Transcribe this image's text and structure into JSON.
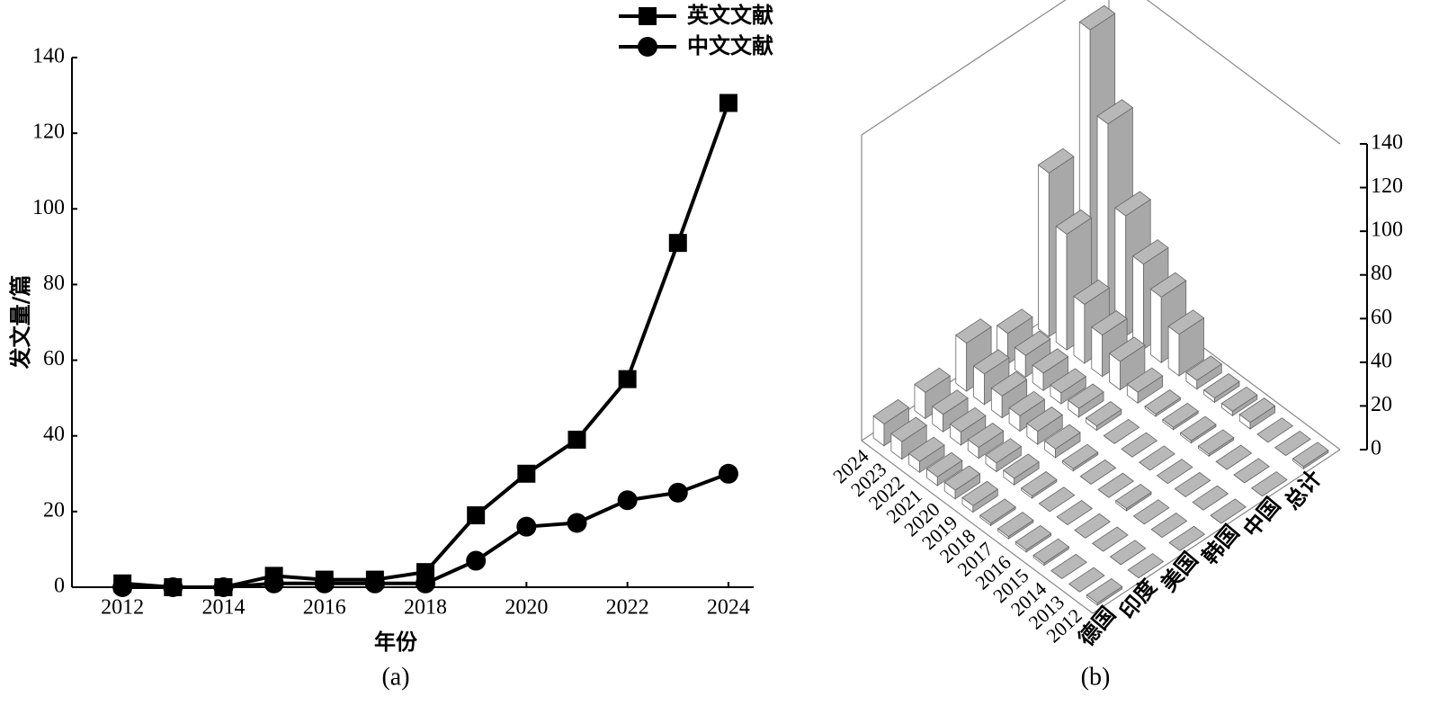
{
  "chart_data": [
    {
      "type": "line",
      "caption": "(a)",
      "xlabel": "年份",
      "ylabel": "发文量/篇",
      "x": [
        2012,
        2013,
        2014,
        2015,
        2016,
        2017,
        2018,
        2019,
        2020,
        2021,
        2022,
        2023,
        2024
      ],
      "series": [
        {
          "name": "英文文献",
          "color": "#000000",
          "marker": "square",
          "values": [
            1,
            0,
            0,
            3,
            2,
            2,
            4,
            19,
            30,
            39,
            55,
            91,
            128
          ]
        },
        {
          "name": "中文文献",
          "color": "#000000",
          "marker": "circle",
          "values": [
            0,
            0,
            0,
            1,
            1,
            1,
            1,
            7,
            16,
            17,
            23,
            25,
            30
          ]
        }
      ],
      "xlim": [
        2011,
        2024.5
      ],
      "xticks": [
        2012,
        2014,
        2016,
        2018,
        2020,
        2022,
        2024
      ],
      "ylim": [
        0,
        140
      ],
      "yticks": [
        0,
        20,
        40,
        60,
        80,
        100,
        120,
        140
      ],
      "legend": "top-right",
      "grid": false
    },
    {
      "type": "bar3d",
      "caption": "(b)",
      "categories": [
        "2012",
        "2013",
        "2014",
        "2015",
        "2016",
        "2017",
        "2018",
        "2019",
        "2020",
        "2021",
        "2022",
        "2023",
        "2024"
      ],
      "series": [
        {
          "name": "德国",
          "color": "#b8b8b8",
          "values": [
            1,
            0,
            0,
            1,
            1,
            1,
            1,
            3,
            4,
            4,
            5,
            8,
            10
          ]
        },
        {
          "name": "印度",
          "color": "#b8b8b8",
          "values": [
            0,
            0,
            0,
            0,
            0,
            0,
            1,
            3,
            4,
            5,
            6,
            8,
            12
          ]
        },
        {
          "name": "美国",
          "color": "#b8b8b8",
          "values": [
            0,
            0,
            0,
            1,
            0,
            0,
            1,
            4,
            6,
            7,
            10,
            14,
            22
          ]
        },
        {
          "name": "韩国",
          "color": "#b8b8b8",
          "values": [
            0,
            0,
            0,
            0,
            0,
            0,
            0,
            2,
            4,
            5,
            8,
            10,
            14
          ]
        },
        {
          "name": "中国",
          "color": "#b8b8b8",
          "values": [
            0,
            0,
            0,
            1,
            1,
            1,
            1,
            5,
            13,
            19,
            27,
            53,
            75
          ]
        },
        {
          "name": "总计",
          "color": "#b8b8b8",
          "values": [
            1,
            0,
            0,
            3,
            2,
            2,
            4,
            19,
            30,
            39,
            55,
            91,
            128
          ]
        }
      ],
      "zlim": [
        0,
        140
      ],
      "zticks": [
        0,
        20,
        40,
        60,
        80,
        100,
        120,
        140
      ]
    }
  ]
}
